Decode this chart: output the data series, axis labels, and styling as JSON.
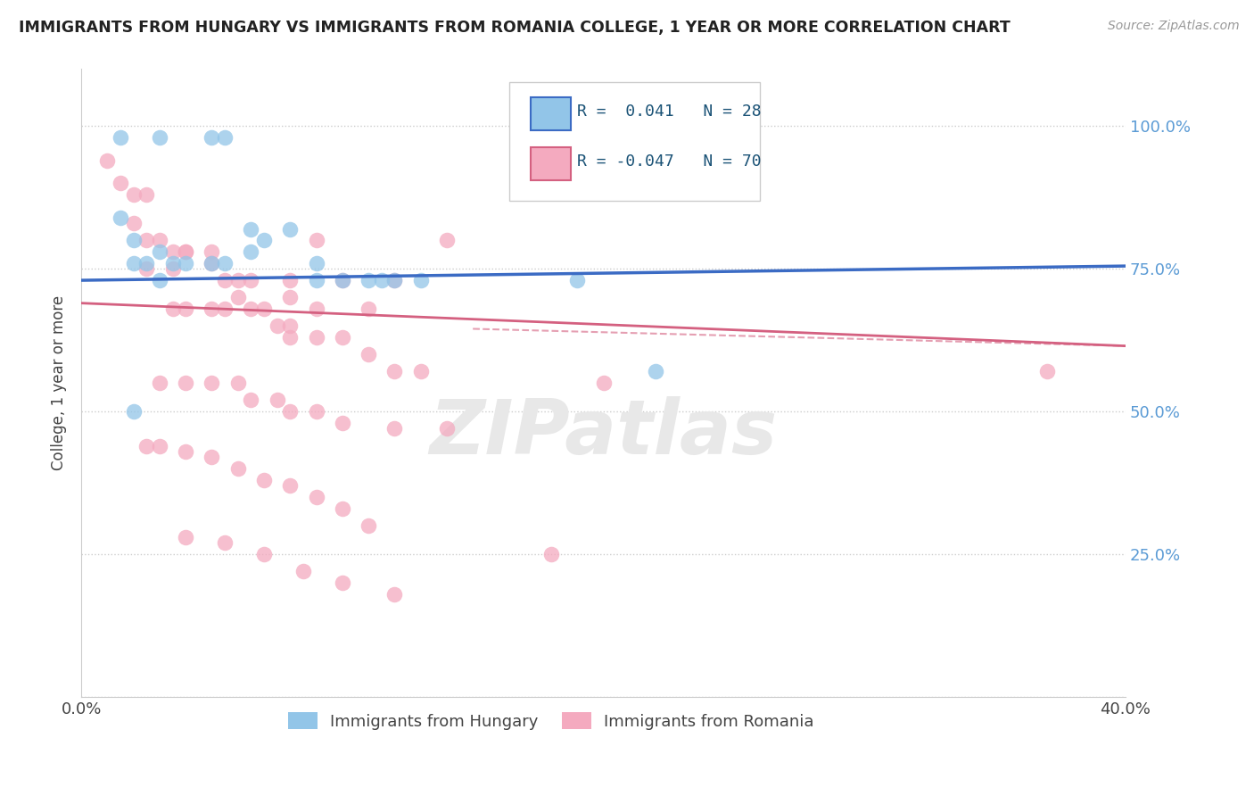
{
  "title": "IMMIGRANTS FROM HUNGARY VS IMMIGRANTS FROM ROMANIA COLLEGE, 1 YEAR OR MORE CORRELATION CHART",
  "source": "Source: ZipAtlas.com",
  "ylabel": "College, 1 year or more",
  "xlim": [
    0.0,
    0.4
  ],
  "ylim": [
    0.0,
    1.1
  ],
  "x_ticks": [
    0.0,
    0.1,
    0.2,
    0.3,
    0.4
  ],
  "x_tick_labels": [
    "0.0%",
    "",
    "",
    "",
    "40.0%"
  ],
  "y_ticks": [
    0.0,
    0.25,
    0.5,
    0.75,
    1.0
  ],
  "y_tick_labels": [
    "",
    "25.0%",
    "50.0%",
    "75.0%",
    "100.0%"
  ],
  "hungary_R": 0.041,
  "hungary_N": 28,
  "romania_R": -0.047,
  "romania_N": 70,
  "hungary_color": "#92C5E8",
  "romania_color": "#F4AABF",
  "hungary_line_color": "#3B6BC4",
  "romania_line_color": "#D46080",
  "hungary_x": [
    0.015,
    0.03,
    0.05,
    0.055,
    0.015,
    0.02,
    0.02,
    0.025,
    0.03,
    0.03,
    0.035,
    0.04,
    0.05,
    0.055,
    0.065,
    0.07,
    0.09,
    0.1,
    0.11,
    0.115,
    0.12,
    0.13,
    0.065,
    0.08,
    0.09,
    0.02,
    0.22,
    0.19
  ],
  "hungary_y": [
    0.98,
    0.98,
    0.98,
    0.98,
    0.84,
    0.8,
    0.76,
    0.76,
    0.78,
    0.73,
    0.76,
    0.76,
    0.76,
    0.76,
    0.78,
    0.8,
    0.76,
    0.73,
    0.73,
    0.73,
    0.73,
    0.73,
    0.82,
    0.82,
    0.73,
    0.5,
    0.57,
    0.73
  ],
  "romania_x": [
    0.01,
    0.015,
    0.02,
    0.025,
    0.02,
    0.025,
    0.03,
    0.035,
    0.04,
    0.05,
    0.025,
    0.035,
    0.04,
    0.05,
    0.055,
    0.06,
    0.065,
    0.08,
    0.09,
    0.1,
    0.12,
    0.14,
    0.06,
    0.08,
    0.09,
    0.11,
    0.035,
    0.04,
    0.05,
    0.055,
    0.065,
    0.07,
    0.075,
    0.08,
    0.08,
    0.09,
    0.1,
    0.11,
    0.12,
    0.13,
    0.03,
    0.04,
    0.05,
    0.06,
    0.065,
    0.075,
    0.08,
    0.09,
    0.1,
    0.12,
    0.14,
    0.025,
    0.03,
    0.04,
    0.05,
    0.06,
    0.07,
    0.08,
    0.09,
    0.1,
    0.11,
    0.04,
    0.055,
    0.07,
    0.085,
    0.1,
    0.12,
    0.18,
    0.2,
    0.37
  ],
  "romania_y": [
    0.94,
    0.9,
    0.88,
    0.88,
    0.83,
    0.8,
    0.8,
    0.78,
    0.78,
    0.78,
    0.75,
    0.75,
    0.78,
    0.76,
    0.73,
    0.73,
    0.73,
    0.73,
    0.8,
    0.73,
    0.73,
    0.8,
    0.7,
    0.7,
    0.68,
    0.68,
    0.68,
    0.68,
    0.68,
    0.68,
    0.68,
    0.68,
    0.65,
    0.65,
    0.63,
    0.63,
    0.63,
    0.6,
    0.57,
    0.57,
    0.55,
    0.55,
    0.55,
    0.55,
    0.52,
    0.52,
    0.5,
    0.5,
    0.48,
    0.47,
    0.47,
    0.44,
    0.44,
    0.43,
    0.42,
    0.4,
    0.38,
    0.37,
    0.35,
    0.33,
    0.3,
    0.28,
    0.27,
    0.25,
    0.22,
    0.2,
    0.18,
    0.25,
    0.55,
    0.57
  ],
  "grid_color": "#CCCCCC",
  "dotted_line_color": "#BBBBBB",
  "right_label_color": "#5B9BD5",
  "title_color": "#222222",
  "source_color": "#999999"
}
